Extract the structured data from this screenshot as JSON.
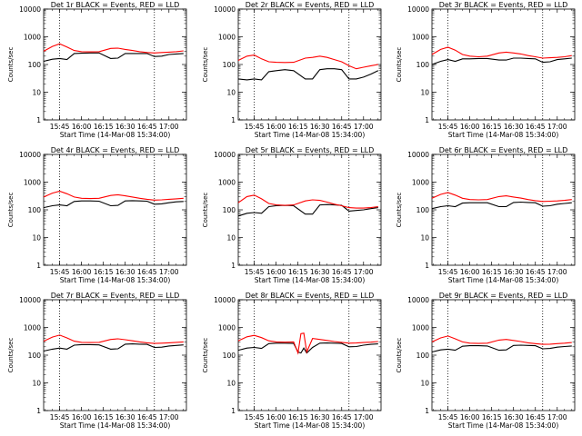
{
  "figure": {
    "xlabel": "Start Time (14-Mar-08 15:34:00)",
    "ylabel": "Counts/sec",
    "colors": {
      "events": "#000000",
      "lld": "#ff0000",
      "axes": "#000000"
    }
  },
  "chart_data": [
    {
      "type": "line",
      "title": "Det 1r BLACK = Events, RED = LLD",
      "xlabel": "Start Time (14-Mar-08 15:34:00)",
      "ylabel": "Counts/sec",
      "xlim": [
        "15:34",
        "17:12"
      ],
      "ylim": [
        1,
        10000
      ],
      "yscale": "log",
      "xticks": [
        "15:45",
        "16:00",
        "16:15",
        "16:30",
        "16:45",
        "17:00"
      ],
      "yticks": [
        "1",
        "10",
        "100",
        "1000",
        "10000"
      ],
      "vlines": [
        "15:45",
        "16:50"
      ],
      "x": [
        "15:34",
        "15:40",
        "15:45",
        "15:50",
        "15:55",
        "16:00",
        "16:06",
        "16:12",
        "16:20",
        "16:25",
        "16:30",
        "16:35",
        "16:40",
        "16:45",
        "16:50",
        "16:55",
        "17:00",
        "17:05",
        "17:10"
      ],
      "series": [
        {
          "name": "BLACK = Events",
          "color": "#000000",
          "values": [
            130,
            155,
            165,
            150,
            250,
            255,
            260,
            260,
            165,
            170,
            250,
            250,
            250,
            250,
            195,
            200,
            230,
            240,
            250
          ]
        },
        {
          "name": "RED = LLD",
          "color": "#ff0000",
          "values": [
            300,
            450,
            560,
            430,
            320,
            290,
            285,
            290,
            380,
            390,
            350,
            320,
            290,
            270,
            260,
            270,
            280,
            290,
            310
          ]
        }
      ]
    },
    {
      "type": "line",
      "title": "Det 2r BLACK = Events, RED = LLD",
      "xlabel": "Start Time (14-Mar-08 15:34:00)",
      "ylabel": "Counts/sec",
      "xlim": [
        "15:34",
        "17:12"
      ],
      "ylim": [
        1,
        10000
      ],
      "yscale": "log",
      "xticks": [
        "15:45",
        "16:00",
        "16:15",
        "16:30",
        "16:45",
        "17:00"
      ],
      "yticks": [
        "1",
        "10",
        "100",
        "1000",
        "10000"
      ],
      "vlines": [
        "15:45",
        "16:50"
      ],
      "x": [
        "15:34",
        "15:40",
        "15:45",
        "15:50",
        "15:55",
        "16:00",
        "16:06",
        "16:12",
        "16:20",
        "16:25",
        "16:30",
        "16:35",
        "16:40",
        "16:45",
        "16:50",
        "16:55",
        "17:00",
        "17:05",
        "17:10"
      ],
      "series": [
        {
          "name": "BLACK = Events",
          "color": "#000000",
          "values": [
            30,
            28,
            30,
            28,
            55,
            60,
            65,
            60,
            30,
            30,
            65,
            70,
            70,
            65,
            30,
            30,
            35,
            45,
            60
          ]
        },
        {
          "name": "RED = LLD",
          "color": "#ff0000",
          "values": [
            140,
            200,
            220,
            160,
            125,
            120,
            118,
            120,
            170,
            180,
            200,
            180,
            150,
            125,
            90,
            70,
            80,
            90,
            100
          ]
        }
      ]
    },
    {
      "type": "line",
      "title": "Det 3r BLACK = Events, RED = LLD",
      "xlabel": "Start Time (14-Mar-08 15:34:00)",
      "ylabel": "Counts/sec",
      "xlim": [
        "15:34",
        "17:12"
      ],
      "ylim": [
        1,
        10000
      ],
      "yscale": "log",
      "xticks": [
        "15:45",
        "16:00",
        "16:15",
        "16:30",
        "16:45",
        "17:00"
      ],
      "yticks": [
        "1",
        "10",
        "100",
        "1000",
        "10000"
      ],
      "vlines": [
        "15:45",
        "16:50"
      ],
      "x": [
        "15:34",
        "15:40",
        "15:45",
        "15:50",
        "15:55",
        "16:00",
        "16:06",
        "16:12",
        "16:20",
        "16:25",
        "16:30",
        "16:35",
        "16:40",
        "16:45",
        "16:50",
        "16:55",
        "17:00",
        "17:05",
        "17:10"
      ],
      "series": [
        {
          "name": "BLACK = Events",
          "color": "#000000",
          "values": [
            100,
            130,
            150,
            130,
            160,
            160,
            165,
            165,
            145,
            145,
            170,
            170,
            165,
            160,
            120,
            125,
            150,
            160,
            170
          ]
        },
        {
          "name": "RED = LLD",
          "color": "#ff0000",
          "values": [
            230,
            350,
            420,
            330,
            230,
            200,
            190,
            200,
            260,
            280,
            260,
            240,
            210,
            190,
            170,
            175,
            180,
            190,
            210
          ]
        }
      ]
    },
    {
      "type": "line",
      "title": "Det 4r BLACK = Events, RED = LLD",
      "xlabel": "Start Time (14-Mar-08 15:34:00)",
      "ylabel": "Counts/sec",
      "xlim": [
        "15:34",
        "17:12"
      ],
      "ylim": [
        1,
        10000
      ],
      "yscale": "log",
      "xticks": [
        "15:45",
        "16:00",
        "16:15",
        "16:30",
        "16:45",
        "17:00"
      ],
      "yticks": [
        "1",
        "10",
        "100",
        "1000",
        "10000"
      ],
      "vlines": [
        "15:45",
        "16:50"
      ],
      "x": [
        "15:34",
        "15:40",
        "15:45",
        "15:50",
        "15:55",
        "16:00",
        "16:06",
        "16:12",
        "16:20",
        "16:25",
        "16:30",
        "16:35",
        "16:40",
        "16:45",
        "16:50",
        "16:55",
        "17:00",
        "17:05",
        "17:10"
      ],
      "series": [
        {
          "name": "BLACK = Events",
          "color": "#000000",
          "values": [
            120,
            140,
            150,
            140,
            200,
            210,
            210,
            205,
            140,
            145,
            210,
            215,
            210,
            205,
            160,
            165,
            180,
            195,
            200
          ]
        },
        {
          "name": "RED = LLD",
          "color": "#ff0000",
          "values": [
            290,
            400,
            470,
            380,
            290,
            260,
            255,
            260,
            330,
            350,
            320,
            290,
            260,
            240,
            225,
            230,
            240,
            250,
            260
          ]
        }
      ]
    },
    {
      "type": "line",
      "title": "Det 5r BLACK = Events, RED = LLD",
      "xlabel": "Start Time (14-Mar-08 15:34:00)",
      "ylabel": "Counts/sec",
      "xlim": [
        "15:34",
        "17:12"
      ],
      "ylim": [
        1,
        10000
      ],
      "yscale": "log",
      "xticks": [
        "15:45",
        "16:00",
        "16:15",
        "16:30",
        "16:45",
        "17:00"
      ],
      "yticks": [
        "1",
        "10",
        "100",
        "1000",
        "10000"
      ],
      "vlines": [
        "15:45",
        "16:50"
      ],
      "x": [
        "15:34",
        "15:40",
        "15:45",
        "15:50",
        "15:55",
        "16:00",
        "16:06",
        "16:12",
        "16:20",
        "16:25",
        "16:30",
        "16:35",
        "16:40",
        "16:45",
        "16:50",
        "16:55",
        "17:00",
        "17:05",
        "17:10"
      ],
      "series": [
        {
          "name": "BLACK = Events",
          "color": "#000000",
          "values": [
            60,
            75,
            80,
            75,
            130,
            140,
            145,
            140,
            70,
            70,
            150,
            155,
            150,
            145,
            90,
            95,
            100,
            110,
            120
          ]
        },
        {
          "name": "RED = LLD",
          "color": "#ff0000",
          "values": [
            180,
            300,
            340,
            250,
            170,
            150,
            145,
            150,
            210,
            230,
            220,
            190,
            160,
            140,
            120,
            115,
            115,
            120,
            130
          ]
        }
      ]
    },
    {
      "type": "line",
      "title": "Det 6r BLACK = Events, RED = LLD",
      "xlabel": "Start Time (14-Mar-08 15:34:00)",
      "ylabel": "Counts/sec",
      "xlim": [
        "15:34",
        "17:12"
      ],
      "ylim": [
        1,
        10000
      ],
      "yscale": "log",
      "xticks": [
        "15:45",
        "16:00",
        "16:15",
        "16:30",
        "16:45",
        "17:00"
      ],
      "yticks": [
        "1",
        "10",
        "100",
        "1000",
        "10000"
      ],
      "vlines": [
        "15:45",
        "16:50"
      ],
      "x": [
        "15:34",
        "15:40",
        "15:45",
        "15:50",
        "15:55",
        "16:00",
        "16:06",
        "16:12",
        "16:20",
        "16:25",
        "16:30",
        "16:35",
        "16:40",
        "16:45",
        "16:50",
        "16:55",
        "17:00",
        "17:05",
        "17:10"
      ],
      "series": [
        {
          "name": "BLACK = Events",
          "color": "#000000",
          "values": [
            110,
            130,
            140,
            130,
            175,
            180,
            180,
            180,
            130,
            130,
            185,
            190,
            185,
            180,
            135,
            140,
            160,
            170,
            180
          ]
        },
        {
          "name": "RED = LLD",
          "color": "#ff0000",
          "values": [
            260,
            360,
            420,
            340,
            260,
            235,
            230,
            235,
            300,
            320,
            290,
            265,
            235,
            215,
            200,
            205,
            210,
            220,
            235
          ]
        }
      ]
    },
    {
      "type": "line",
      "title": "Det 7r BLACK = Events, RED = LLD",
      "xlabel": "Start Time (14-Mar-08 15:34:00)",
      "ylabel": "Counts/sec",
      "xlim": [
        "15:34",
        "17:12"
      ],
      "ylim": [
        1,
        10000
      ],
      "yscale": "log",
      "xticks": [
        "15:45",
        "16:00",
        "16:15",
        "16:30",
        "16:45",
        "17:00"
      ],
      "yticks": [
        "1",
        "10",
        "100",
        "1000",
        "10000"
      ],
      "vlines": [
        "15:45",
        "16:50"
      ],
      "x": [
        "15:34",
        "15:40",
        "15:45",
        "15:50",
        "15:55",
        "16:00",
        "16:06",
        "16:12",
        "16:20",
        "16:25",
        "16:30",
        "16:35",
        "16:40",
        "16:45",
        "16:50",
        "16:55",
        "17:00",
        "17:05",
        "17:10"
      ],
      "series": [
        {
          "name": "BLACK = Events",
          "color": "#000000",
          "values": [
            140,
            165,
            180,
            165,
            230,
            240,
            240,
            235,
            165,
            170,
            250,
            255,
            250,
            245,
            190,
            195,
            215,
            225,
            235
          ]
        },
        {
          "name": "RED = LLD",
          "color": "#ff0000",
          "values": [
            320,
            450,
            530,
            420,
            320,
            290,
            285,
            290,
            370,
            390,
            360,
            330,
            300,
            280,
            265,
            270,
            280,
            290,
            300
          ]
        }
      ]
    },
    {
      "type": "line",
      "title": "Det 8r BLACK = Events, RED = LLD",
      "xlabel": "Start Time (14-Mar-08 15:34:00)",
      "ylabel": "Counts/sec",
      "xlim": [
        "15:34",
        "17:12"
      ],
      "ylim": [
        1,
        10000
      ],
      "yscale": "log",
      "xticks": [
        "15:45",
        "16:00",
        "16:15",
        "16:30",
        "16:45",
        "17:00"
      ],
      "yticks": [
        "1",
        "10",
        "100",
        "1000",
        "10000"
      ],
      "vlines": [
        "15:45",
        "16:50"
      ],
      "x": [
        "15:34",
        "15:40",
        "15:45",
        "15:50",
        "15:55",
        "16:00",
        "16:06",
        "16:12",
        "16:15",
        "16:17",
        "16:19",
        "16:21",
        "16:25",
        "16:30",
        "16:35",
        "16:40",
        "16:45",
        "16:50",
        "16:55",
        "17:00",
        "17:05",
        "17:10"
      ],
      "series": [
        {
          "name": "BLACK = Events",
          "color": "#000000",
          "values": [
            150,
            180,
            190,
            175,
            260,
            270,
            270,
            265,
            130,
            120,
            180,
            120,
            190,
            270,
            275,
            270,
            265,
            200,
            205,
            230,
            245,
            255
          ]
        },
        {
          "name": "RED = LLD",
          "color": "#ff0000",
          "values": [
            330,
            460,
            520,
            430,
            330,
            300,
            295,
            300,
            120,
            600,
            620,
            130,
            400,
            370,
            340,
            310,
            290,
            270,
            275,
            285,
            295,
            310
          ]
        }
      ]
    },
    {
      "type": "line",
      "title": "Det 9r BLACK = Events, RED = LLD",
      "xlabel": "Start Time (14-Mar-08 15:34:00)",
      "ylabel": "Counts/sec",
      "xlim": [
        "15:34",
        "17:12"
      ],
      "ylim": [
        1,
        10000
      ],
      "yscale": "log",
      "xticks": [
        "15:45",
        "16:00",
        "16:15",
        "16:30",
        "16:45",
        "17:00"
      ],
      "yticks": [
        "1",
        "10",
        "100",
        "1000",
        "10000"
      ],
      "vlines": [
        "15:45",
        "16:50"
      ],
      "x": [
        "15:34",
        "15:40",
        "15:45",
        "15:50",
        "15:55",
        "16:00",
        "16:06",
        "16:12",
        "16:20",
        "16:25",
        "16:30",
        "16:35",
        "16:40",
        "16:45",
        "16:50",
        "16:55",
        "17:00",
        "17:05",
        "17:10"
      ],
      "series": [
        {
          "name": "BLACK = Events",
          "color": "#000000",
          "values": [
            130,
            155,
            165,
            150,
            210,
            220,
            220,
            215,
            150,
            155,
            225,
            230,
            225,
            220,
            170,
            175,
            195,
            205,
            215
          ]
        },
        {
          "name": "RED = LLD",
          "color": "#ff0000",
          "values": [
            300,
            420,
            490,
            390,
            300,
            270,
            265,
            270,
            350,
            370,
            340,
            310,
            280,
            260,
            245,
            250,
            260,
            270,
            285
          ]
        }
      ]
    }
  ]
}
